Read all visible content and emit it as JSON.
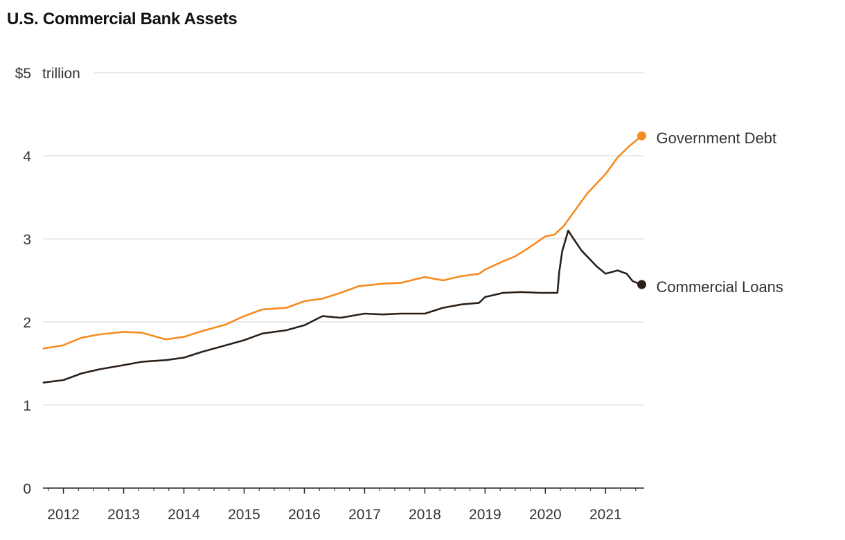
{
  "title": "U.S. Commercial Bank Assets",
  "chart_data": {
    "type": "line",
    "title": "U.S. Commercial Bank Assets",
    "ylabel": "$5 trillion",
    "y_unit": "trillion",
    "ylim": [
      0,
      5
    ],
    "y_ticks": [
      {
        "value": 5,
        "label": "$5"
      },
      {
        "value": 4,
        "label": "4"
      },
      {
        "value": 3,
        "label": "3"
      },
      {
        "value": 2,
        "label": "2"
      },
      {
        "value": 1,
        "label": "1"
      },
      {
        "value": 0,
        "label": "0"
      }
    ],
    "xlim": [
      2011.66,
      2021.64
    ],
    "x_ticks": [
      "2012",
      "2013",
      "2014",
      "2015",
      "2016",
      "2017",
      "2018",
      "2019",
      "2020",
      "2021"
    ],
    "grid": true,
    "legend": "direct labels at line ends",
    "series": [
      {
        "name": "Government Debt",
        "color": "#f68b1f",
        "x": [
          2011.67,
          2012.0,
          2012.3,
          2012.6,
          2013.0,
          2013.3,
          2013.7,
          2014.0,
          2014.3,
          2014.7,
          2015.0,
          2015.3,
          2015.7,
          2016.0,
          2016.3,
          2016.6,
          2016.9,
          2017.3,
          2017.6,
          2018.0,
          2018.3,
          2018.6,
          2018.9,
          2019.0,
          2019.3,
          2019.5,
          2019.7,
          2020.0,
          2020.15,
          2020.3,
          2020.5,
          2020.7,
          2021.0,
          2021.2,
          2021.4,
          2021.6
        ],
        "values": [
          1.68,
          1.72,
          1.81,
          1.85,
          1.88,
          1.87,
          1.79,
          1.82,
          1.89,
          1.97,
          2.07,
          2.15,
          2.17,
          2.25,
          2.28,
          2.35,
          2.43,
          2.46,
          2.47,
          2.54,
          2.5,
          2.55,
          2.58,
          2.63,
          2.73,
          2.79,
          2.88,
          3.03,
          3.05,
          3.15,
          3.35,
          3.55,
          3.78,
          3.98,
          4.12,
          4.24
        ]
      },
      {
        "name": "Commercial Loans",
        "color": "#2b2018",
        "x": [
          2011.67,
          2012.0,
          2012.3,
          2012.6,
          2013.0,
          2013.3,
          2013.7,
          2014.0,
          2014.3,
          2014.7,
          2015.0,
          2015.3,
          2015.7,
          2016.0,
          2016.3,
          2016.6,
          2017.0,
          2017.3,
          2017.6,
          2018.0,
          2018.3,
          2018.6,
          2018.9,
          2019.0,
          2019.3,
          2019.6,
          2019.9,
          2020.2,
          2020.23,
          2020.28,
          2020.38,
          2020.45,
          2020.6,
          2020.85,
          2021.0,
          2021.2,
          2021.35,
          2021.45,
          2021.6
        ],
        "values": [
          1.27,
          1.3,
          1.38,
          1.43,
          1.48,
          1.52,
          1.54,
          1.57,
          1.64,
          1.72,
          1.78,
          1.86,
          1.9,
          1.96,
          2.07,
          2.05,
          2.1,
          2.09,
          2.1,
          2.1,
          2.17,
          2.21,
          2.23,
          2.3,
          2.35,
          2.36,
          2.35,
          2.35,
          2.6,
          2.85,
          3.1,
          3.02,
          2.86,
          2.67,
          2.58,
          2.62,
          2.58,
          2.49,
          2.45
        ]
      }
    ]
  }
}
